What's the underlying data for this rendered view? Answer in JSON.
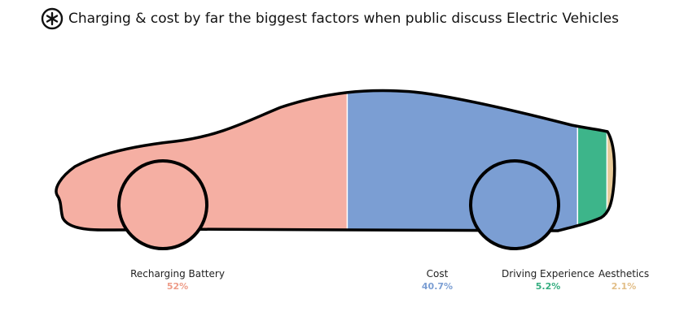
{
  "header": {
    "title": "Charging & cost by far the biggest factors when public discuss Electric Vehicles",
    "logo_icon": "asterisk-circle-icon"
  },
  "chart_data": {
    "type": "bar",
    "title": "Charging & cost by far the biggest factors when public discuss Electric Vehicles",
    "categories": [
      "Recharging Battery",
      "Cost",
      "Driving Experience",
      "Aesthetics"
    ],
    "values": [
      52,
      40.7,
      5.2,
      2.1
    ],
    "value_labels": [
      "52%",
      "40.7%",
      "5.2%",
      "2.1%"
    ],
    "colors": [
      "#F5AFA3",
      "#7B9ED3",
      "#3DB58A",
      "#E8CA98"
    ],
    "label_colors": [
      "#EE9C88",
      "#7B9ED3",
      "#35AD80",
      "#E2BE87"
    ]
  }
}
